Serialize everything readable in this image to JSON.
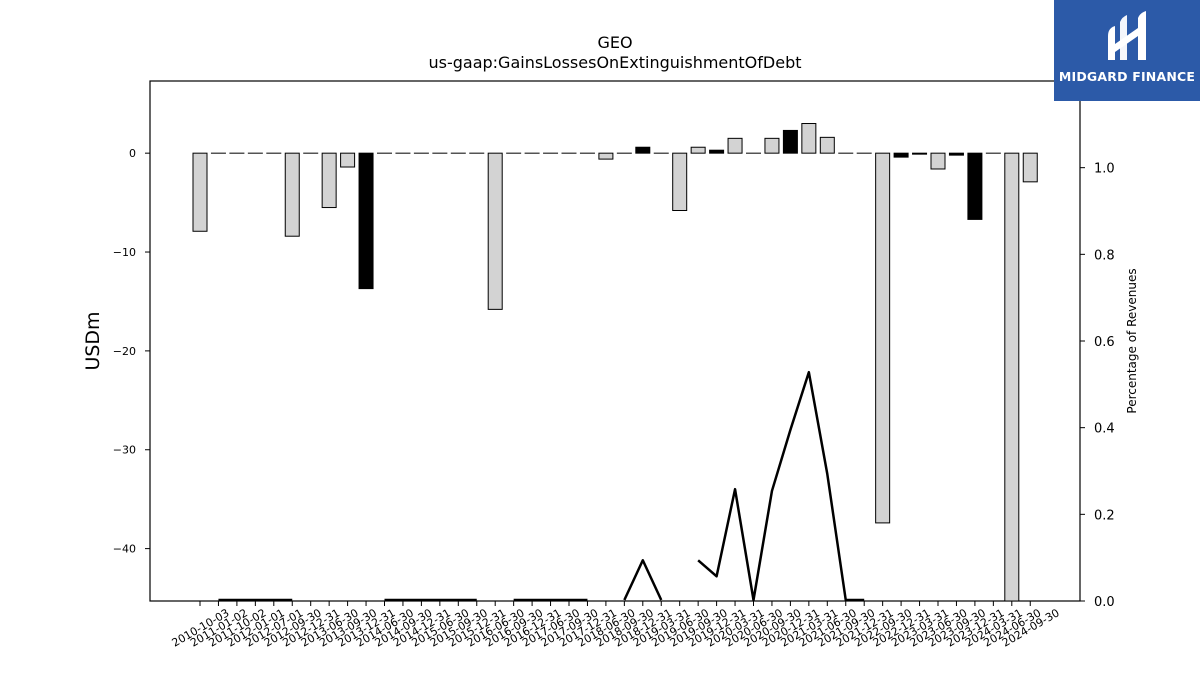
{
  "brand": {
    "name": "MIDGARD FINANCE",
    "bg_color": "#2c5aa8"
  },
  "chart_data": {
    "type": "bar",
    "title": "GEO",
    "subtitle": "us-gaap:GainsLossesOnExtinguishmentOfDebt",
    "ylabel": "USDm",
    "y2label": "Percentage of Revenues",
    "ylim": [
      -45.3,
      7.3
    ],
    "y2lim": [
      0.0,
      1.2
    ],
    "yticks": [
      0,
      -10,
      -20,
      -30,
      -40
    ],
    "y2ticks": [
      0.0,
      0.2,
      0.4,
      0.6,
      0.8,
      1.0
    ],
    "colors": {
      "annual": "#000000",
      "quarterly": "#d3d3d3",
      "line": "#000000"
    },
    "categories": [
      "2010-10-03",
      "2011-01-02",
      "2011-10-02",
      "2012-01-01",
      "2012-07-01",
      "2012-09-30",
      "2012-12-31",
      "2013-06-30",
      "2013-09-30",
      "2013-12-31",
      "2014-06-30",
      "2014-09-30",
      "2014-12-31",
      "2015-06-30",
      "2015-09-30",
      "2015-12-31",
      "2016-06-30",
      "2016-09-30",
      "2016-12-31",
      "2017-06-30",
      "2017-09-30",
      "2017-12-31",
      "2018-06-30",
      "2018-09-30",
      "2018-12-31",
      "2019-03-31",
      "2019-06-30",
      "2019-09-30",
      "2019-12-31",
      "2020-03-31",
      "2020-06-30",
      "2020-09-30",
      "2020-12-31",
      "2021-03-31",
      "2021-06-30",
      "2021-09-30",
      "2021-12-31",
      "2022-09-30",
      "2022-12-31",
      "2023-03-31",
      "2023-06-30",
      "2023-09-30",
      "2023-12-31",
      "2024-03-31",
      "2024-06-30",
      "2024-09-30"
    ],
    "series": [
      {
        "type": "bar",
        "values": [
          -7.9,
          0,
          0,
          0,
          0,
          -8.4,
          0,
          -5.5,
          -1.4,
          -13.7,
          0,
          0,
          0,
          0,
          0,
          0,
          -15.8,
          0,
          0,
          0,
          0,
          0,
          -0.6,
          0,
          0.6,
          0,
          -5.8,
          0.6,
          0.3,
          1.5,
          0,
          1.5,
          2.3,
          3.0,
          1.6,
          0,
          0,
          -37.4,
          -0.4,
          -0.1,
          -1.6,
          -0.2,
          -6.7,
          0,
          -45.3,
          -2.9
        ],
        "kinds": [
          "q",
          "q",
          "q",
          "q",
          "q",
          "q",
          "q",
          "q",
          "q",
          "a",
          "q",
          "q",
          "q",
          "q",
          "q",
          "q",
          "q",
          "q",
          "q",
          "q",
          "q",
          "q",
          "q",
          "q",
          "a",
          "q",
          "q",
          "q",
          "a",
          "q",
          "q",
          "q",
          "a",
          "q",
          "q",
          "q",
          "q",
          "q",
          "a",
          "q",
          "q",
          "a",
          "a",
          "q",
          "q",
          "q"
        ]
      },
      {
        "type": "line",
        "values": [
          null,
          0,
          0,
          0,
          0,
          0,
          null,
          null,
          null,
          null,
          0,
          0,
          0,
          0,
          0,
          0,
          null,
          0,
          0,
          0,
          0,
          0,
          null,
          0,
          0.094,
          0,
          null,
          0.094,
          0.057,
          0.258,
          0,
          0.254,
          0.395,
          0.528,
          0.293,
          0,
          0,
          null,
          null,
          null,
          null,
          null,
          null,
          null,
          null,
          null
        ]
      }
    ]
  }
}
